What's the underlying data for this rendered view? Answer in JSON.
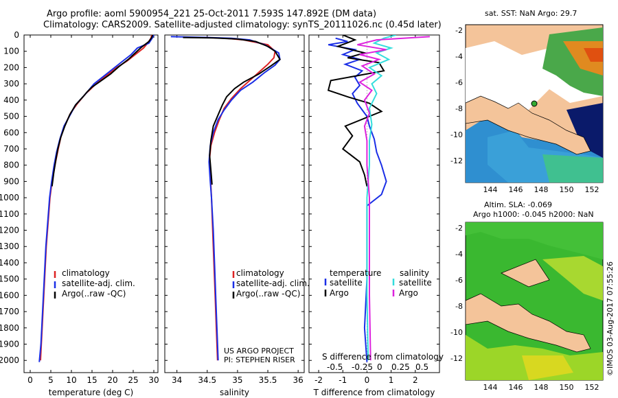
{
  "header": {
    "line1": "Argo profile: aoml 5900954_221 25-Oct-2011 7.593S 147.892E (DM data)",
    "line2": "Climatology: CARS2009. Satellite-adjusted climatology: synTS_20111026.nc (0.45d later)"
  },
  "colors": {
    "climatology": "#dd2222",
    "satellite": "#1a2ee6",
    "argo": "#000000",
    "salinity_sat": "#33dddd",
    "salinity_argo": "#dd22dd"
  },
  "depth_axis": {
    "ticks": [
      0,
      100,
      200,
      300,
      400,
      500,
      600,
      700,
      800,
      900,
      1000,
      1100,
      1200,
      1300,
      1400,
      1500,
      1600,
      1700,
      1800,
      1900,
      2000
    ],
    "ylim": [
      0,
      2075
    ]
  },
  "chart_data": [
    {
      "type": "line",
      "id": "temperature",
      "xlabel": "temperature (deg C)",
      "xlim": [
        -1.5,
        31
      ],
      "xticks": [
        0,
        5,
        10,
        15,
        20,
        25,
        30
      ],
      "legend": [
        "climatology",
        "satellite-adj. clim.",
        "Argo(..raw -QC)"
      ],
      "series": [
        {
          "name": "climatology",
          "color": "#dd2222",
          "points": [
            [
              29.5,
              0
            ],
            [
              29.3,
              20
            ],
            [
              28.5,
              50
            ],
            [
              27.5,
              80
            ],
            [
              25.5,
              120
            ],
            [
              23.5,
              160
            ],
            [
              21.0,
              200
            ],
            [
              18.5,
              250
            ],
            [
              16.0,
              300
            ],
            [
              13.5,
              360
            ],
            [
              11.5,
              420
            ],
            [
              9.8,
              480
            ],
            [
              8.5,
              550
            ],
            [
              7.5,
              620
            ],
            [
              6.8,
              700
            ],
            [
              6.0,
              800
            ],
            [
              5.3,
              900
            ],
            [
              4.8,
              1000
            ],
            [
              4.5,
              1100
            ],
            [
              4.2,
              1200
            ],
            [
              3.9,
              1300
            ],
            [
              3.7,
              1400
            ],
            [
              3.5,
              1500
            ],
            [
              3.3,
              1600
            ],
            [
              3.1,
              1700
            ],
            [
              2.9,
              1800
            ],
            [
              2.7,
              1900
            ],
            [
              2.5,
              2000
            ]
          ]
        },
        {
          "name": "satellite-adj. clim.",
          "color": "#1a2ee6",
          "points": [
            [
              30.0,
              0
            ],
            [
              29.6,
              20
            ],
            [
              28.8,
              50
            ],
            [
              26.0,
              80
            ],
            [
              24.5,
              120
            ],
            [
              22.5,
              160
            ],
            [
              20.5,
              200
            ],
            [
              18.0,
              250
            ],
            [
              15.5,
              300
            ],
            [
              13.5,
              360
            ],
            [
              11.0,
              430
            ],
            [
              9.5,
              500
            ],
            [
              8.2,
              560
            ],
            [
              7.2,
              640
            ],
            [
              6.4,
              720
            ],
            [
              5.8,
              800
            ],
            [
              5.2,
              900
            ],
            [
              4.7,
              1000
            ],
            [
              4.4,
              1100
            ],
            [
              4.1,
              1200
            ],
            [
              3.8,
              1300
            ],
            [
              3.6,
              1400
            ],
            [
              3.4,
              1500
            ],
            [
              3.2,
              1600
            ],
            [
              3.0,
              1700
            ],
            [
              2.8,
              1800
            ],
            [
              2.6,
              1900
            ],
            [
              2.2,
              2010
            ]
          ]
        },
        {
          "name": "Argo(..raw -QC)",
          "color": "#000000",
          "points": [
            [
              29.7,
              0
            ],
            [
              29.5,
              15
            ],
            [
              28.8,
              40
            ],
            [
              27.0,
              75
            ],
            [
              25.5,
              110
            ],
            [
              23.8,
              150
            ],
            [
              21.5,
              195
            ],
            [
              19.5,
              240
            ],
            [
              17.0,
              285
            ],
            [
              15.0,
              320
            ],
            [
              13.8,
              350
            ],
            [
              12.8,
              380
            ],
            [
              11.0,
              430
            ],
            [
              9.6,
              490
            ],
            [
              8.4,
              560
            ],
            [
              7.4,
              630
            ],
            [
              6.7,
              700
            ],
            [
              6.2,
              770
            ],
            [
              5.7,
              850
            ],
            [
              5.3,
              930
            ]
          ]
        }
      ]
    },
    {
      "type": "line",
      "id": "salinity",
      "xlabel": "salinity",
      "xlim": [
        33.8,
        36.1
      ],
      "xticks": [
        34,
        34.5,
        35,
        35.5,
        36
      ],
      "legend": [
        "climatology",
        "satellite-adj. clim.",
        "Argo(..raw -QC)"
      ],
      "credit1": "US ARGO PROJECT",
      "credit2": "PI: STEPHEN RISER",
      "series": [
        {
          "name": "climatology",
          "color": "#dd2222",
          "points": [
            [
              34.45,
              15
            ],
            [
              34.8,
              20
            ],
            [
              35.1,
              30
            ],
            [
              35.5,
              60
            ],
            [
              35.62,
              100
            ],
            [
              35.6,
              140
            ],
            [
              35.5,
              180
            ],
            [
              35.35,
              230
            ],
            [
              35.2,
              280
            ],
            [
              35.05,
              330
            ],
            [
              34.9,
              390
            ],
            [
              34.78,
              450
            ],
            [
              34.7,
              520
            ],
            [
              34.62,
              600
            ],
            [
              34.56,
              680
            ],
            [
              34.54,
              760
            ],
            [
              34.55,
              850
            ],
            [
              34.57,
              1000
            ],
            [
              34.59,
              1200
            ],
            [
              34.61,
              1400
            ],
            [
              34.63,
              1600
            ],
            [
              34.65,
              1800
            ],
            [
              34.67,
              2000
            ]
          ]
        },
        {
          "name": "satellite-adj. clim.",
          "color": "#1a2ee6",
          "points": [
            [
              33.9,
              10
            ],
            [
              34.5,
              15
            ],
            [
              34.9,
              20
            ],
            [
              35.2,
              30
            ],
            [
              35.45,
              60
            ],
            [
              35.68,
              110
            ],
            [
              35.7,
              150
            ],
            [
              35.62,
              185
            ],
            [
              35.45,
              230
            ],
            [
              35.25,
              290
            ],
            [
              35.05,
              340
            ],
            [
              34.9,
              400
            ],
            [
              34.78,
              460
            ],
            [
              34.68,
              520
            ],
            [
              34.6,
              600
            ],
            [
              34.55,
              680
            ],
            [
              34.53,
              780
            ],
            [
              34.55,
              900
            ],
            [
              34.57,
              1000
            ],
            [
              34.6,
              1200
            ],
            [
              34.62,
              1400
            ],
            [
              34.64,
              1600
            ],
            [
              34.66,
              1800
            ],
            [
              34.68,
              2000
            ]
          ]
        },
        {
          "name": "Argo(..raw -QC)",
          "color": "#000000",
          "points": [
            [
              34.1,
              15
            ],
            [
              34.6,
              18
            ],
            [
              35.0,
              25
            ],
            [
              35.3,
              40
            ],
            [
              35.5,
              70
            ],
            [
              35.62,
              100
            ],
            [
              35.7,
              150
            ],
            [
              35.55,
              190
            ],
            [
              35.35,
              240
            ],
            [
              35.1,
              290
            ],
            [
              34.95,
              330
            ],
            [
              34.82,
              380
            ],
            [
              34.75,
              430
            ],
            [
              34.68,
              490
            ],
            [
              34.6,
              560
            ],
            [
              34.56,
              650
            ],
            [
              34.54,
              740
            ],
            [
              34.56,
              830
            ],
            [
              34.58,
              920
            ]
          ]
        }
      ]
    },
    {
      "type": "line",
      "id": "difference",
      "xlabel": "T difference from climatology",
      "xlabel_top": "S difference from climatology",
      "xlim": [
        -2.4,
        3.0
      ],
      "xticks": [
        -2,
        -1,
        0,
        1,
        2
      ],
      "s_ticks": [
        "-0.5",
        "-0.25",
        "0",
        "0.25",
        "0.5"
      ],
      "legend_temperature": "temperature",
      "legend_salinity": "salinity",
      "legend_satellite": "satellite",
      "legend_argo": "Argo",
      "series": [
        {
          "name": "T satellite",
          "color": "#1a2ee6",
          "points": [
            [
              -1.3,
              20
            ],
            [
              -0.8,
              40
            ],
            [
              -1.6,
              60
            ],
            [
              -0.5,
              90
            ],
            [
              -1.0,
              120
            ],
            [
              -0.3,
              150
            ],
            [
              -0.9,
              180
            ],
            [
              -0.2,
              220
            ],
            [
              -0.5,
              260
            ],
            [
              -0.3,
              310
            ],
            [
              -0.6,
              360
            ],
            [
              -0.4,
              420
            ],
            [
              0.0,
              500
            ],
            [
              0.1,
              560
            ],
            [
              0.3,
              640
            ],
            [
              0.4,
              720
            ],
            [
              0.6,
              800
            ],
            [
              0.8,
              900
            ],
            [
              0.6,
              980
            ],
            [
              0.0,
              1050
            ],
            [
              0.0,
              1200
            ],
            [
              0.0,
              1500
            ],
            [
              -0.1,
              1800
            ],
            [
              0.0,
              2010
            ]
          ]
        },
        {
          "name": "T Argo",
          "color": "#000000",
          "points": [
            [
              -1.0,
              0
            ],
            [
              -0.5,
              30
            ],
            [
              -1.2,
              70
            ],
            [
              -0.1,
              110
            ],
            [
              -0.8,
              140
            ],
            [
              0.5,
              170
            ],
            [
              0.7,
              220
            ],
            [
              -1.5,
              280
            ],
            [
              -1.6,
              340
            ],
            [
              -0.8,
              380
            ],
            [
              0.1,
              420
            ],
            [
              0.6,
              470
            ],
            [
              -0.9,
              560
            ],
            [
              -0.6,
              620
            ],
            [
              -1.0,
              700
            ],
            [
              -0.3,
              780
            ],
            [
              -0.1,
              860
            ],
            [
              0.0,
              930
            ]
          ]
        },
        {
          "name": "S satellite",
          "color": "#33dddd",
          "points": [
            [
              1.2,
              0
            ],
            [
              0.7,
              20
            ],
            [
              0.3,
              50
            ],
            [
              1.0,
              80
            ],
            [
              0.4,
              110
            ],
            [
              0.9,
              150
            ],
            [
              0.1,
              200
            ],
            [
              0.6,
              250
            ],
            [
              0.2,
              300
            ],
            [
              0.4,
              360
            ],
            [
              0.1,
              450
            ],
            [
              0.2,
              550
            ],
            [
              0.1,
              650
            ],
            [
              0.1,
              800
            ],
            [
              0.0,
              1000
            ],
            [
              0.0,
              1300
            ],
            [
              0.0,
              1600
            ],
            [
              0.05,
              2000
            ]
          ]
        },
        {
          "name": "S Argo",
          "color": "#dd22dd",
          "points": [
            [
              2.6,
              10
            ],
            [
              0.4,
              30
            ],
            [
              -0.4,
              60
            ],
            [
              0.8,
              90
            ],
            [
              -0.3,
              120
            ],
            [
              0.5,
              150
            ],
            [
              -0.2,
              190
            ],
            [
              0.3,
              240
            ],
            [
              -0.3,
              290
            ],
            [
              0.2,
              340
            ],
            [
              -0.1,
              400
            ],
            [
              0.1,
              480
            ],
            [
              -0.1,
              560
            ],
            [
              0.0,
              650
            ],
            [
              0.0,
              800
            ],
            [
              0.1,
              1000
            ],
            [
              0.1,
              1300
            ],
            [
              0.1,
              1600
            ],
            [
              0.15,
              2000
            ]
          ]
        }
      ]
    }
  ],
  "map_sst": {
    "title": "sat. SST: NaN Argo: 29.7",
    "yticks": [
      "-2",
      "-4",
      "-6",
      "-8",
      "-10",
      "-12"
    ],
    "xticks": [
      "144",
      "146",
      "148",
      "150",
      "152"
    ]
  },
  "map_sla": {
    "title1": "Altim. SLA: -0.069",
    "title2": "Argo h1000: -0.045 h2000: NaN",
    "yticks": [
      "-2",
      "-4",
      "-6",
      "-8",
      "-10",
      "-12"
    ],
    "xticks": [
      "144",
      "146",
      "148",
      "150",
      "152"
    ]
  },
  "imos_stamp": "©IMOS 03-Aug-2017 07:55:26"
}
